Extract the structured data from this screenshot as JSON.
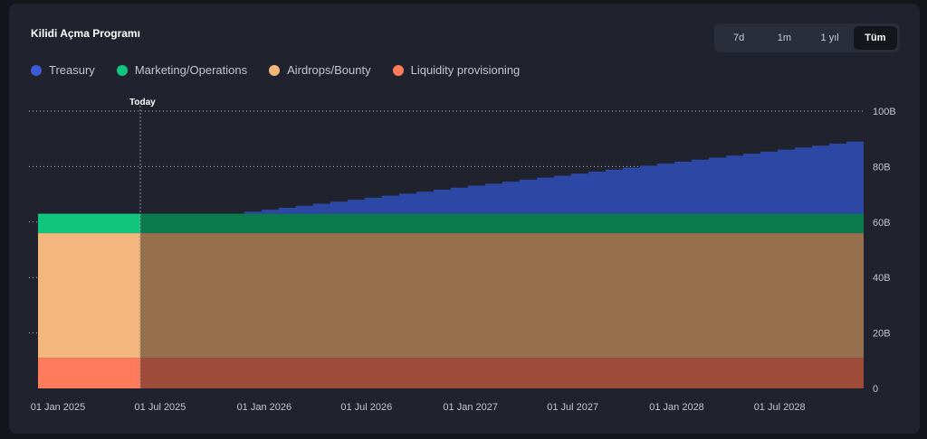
{
  "header": {
    "title": "Kilidi Açma Programı"
  },
  "tabs": [
    {
      "label": "7d",
      "active": false
    },
    {
      "label": "1m",
      "active": false
    },
    {
      "label": "1 yıl",
      "active": false
    },
    {
      "label": "Tüm",
      "active": true
    }
  ],
  "chart_data": {
    "type": "area",
    "x_unit": "date",
    "ylim": [
      0,
      100
    ],
    "y_ticks": [
      "0",
      "20B",
      "40B",
      "60B",
      "80B",
      "100B"
    ],
    "y_tick_values": [
      0,
      20,
      40,
      60,
      80,
      100
    ],
    "x_ticks": [
      "01 Jan 2025",
      "01 Jul 2025",
      "01 Jan 2026",
      "01 Jul 2026",
      "01 Jan 2027",
      "01 Jul 2027",
      "01 Jan 2028",
      "01 Jul 2028"
    ],
    "x_start": "2025-01-01",
    "x_end": "2029-01-01",
    "today_label": "Today",
    "today_date": "2025-07-01",
    "grid": true,
    "legend_position": "top-left",
    "series": [
      {
        "name": "Liquidity provisioning",
        "color": "#ff7b5c",
        "base": 0,
        "value": 11
      },
      {
        "name": "Airdrops/Bounty",
        "color": "#f3b67c",
        "base": 11,
        "value": 45
      },
      {
        "name": "Marketing/Operations",
        "color": "#12c57f",
        "base": 56,
        "value": 7
      },
      {
        "name": "Treasury",
        "color": "#3c5bd8",
        "base": 63,
        "start_value": 0,
        "end_value": 26,
        "start_date": "2026-01-01"
      }
    ]
  }
}
